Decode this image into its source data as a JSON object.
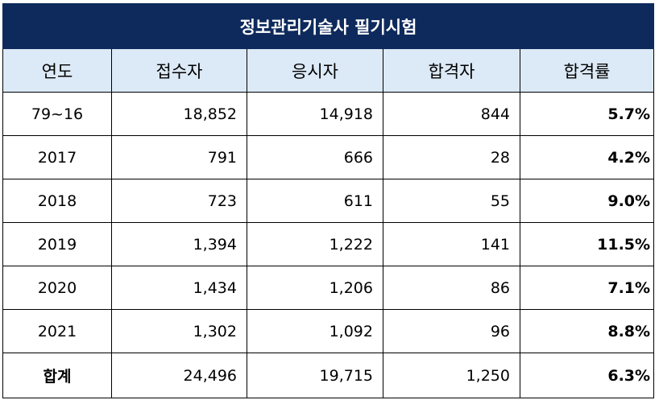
{
  "table": {
    "title": "정보관리기술사 필기시험",
    "columns": [
      "연도",
      "접수자",
      "응시자",
      "합격자",
      "합격률"
    ],
    "rows": [
      {
        "year": "79~16",
        "applicants": "18,852",
        "examinees": "14,918",
        "passed": "844",
        "rate": "5.7%"
      },
      {
        "year": "2017",
        "applicants": "791",
        "examinees": "666",
        "passed": "28",
        "rate": "4.2%"
      },
      {
        "year": "2018",
        "applicants": "723",
        "examinees": "611",
        "passed": "55",
        "rate": "9.0%"
      },
      {
        "year": "2019",
        "applicants": "1,394",
        "examinees": "1,222",
        "passed": "141",
        "rate": "11.5%"
      },
      {
        "year": "2020",
        "applicants": "1,434",
        "examinees": "1,206",
        "passed": "86",
        "rate": "7.1%"
      },
      {
        "year": "2021",
        "applicants": "1,302",
        "examinees": "1,092",
        "passed": "96",
        "rate": "8.8%"
      }
    ],
    "total": {
      "label": "합계",
      "applicants": "24,496",
      "examinees": "19,715",
      "passed": "1,250",
      "rate": "6.3%"
    }
  },
  "colors": {
    "title_bg": "#0e2a5c",
    "header_bg": "#dce9f6",
    "title_text": "#ffffff"
  }
}
